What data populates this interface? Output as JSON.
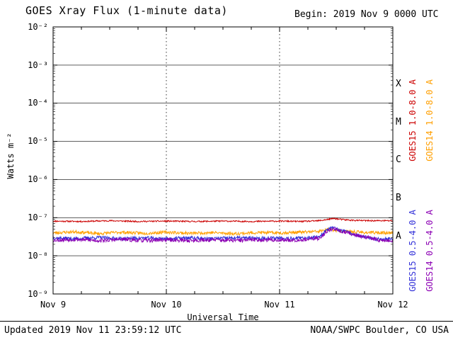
{
  "header": {
    "title": "GOES Xray Flux (1-minute data)",
    "begin_label": "Begin:  2019 Nov 9 0000 UTC"
  },
  "footer": {
    "updated": "Updated 2019 Nov 11 23:59:12 UTC",
    "credit": "NOAA/SWPC Boulder, CO USA"
  },
  "chart_data": {
    "type": "line",
    "title": "GOES Xray Flux (1-minute data)",
    "xlabel": "Universal Time",
    "ylabel": "Watts m⁻²",
    "x_ticks": [
      "Nov 9",
      "Nov 10",
      "Nov 11",
      "Nov 12"
    ],
    "x_tick_days": [
      0,
      1,
      2,
      3
    ],
    "y_tick_labels": [
      "10⁻²",
      "10⁻³",
      "10⁻⁴",
      "10⁻⁵",
      "10⁻⁶",
      "10⁻⁷",
      "10⁻⁸",
      "10⁻⁹"
    ],
    "y_tick_exponents": [
      -2,
      -3,
      -4,
      -5,
      -6,
      -7,
      -8,
      -9
    ],
    "xlim_days": [
      0,
      3
    ],
    "ylim_log": [
      -9,
      -2
    ],
    "grid": {
      "h_decades": [
        -3,
        -4,
        -5,
        -6,
        -7,
        -8
      ],
      "v_days": [
        1,
        2
      ]
    },
    "flare_classes": [
      {
        "label": "X",
        "log_center": -3.5
      },
      {
        "label": "M",
        "log_center": -4.5
      },
      {
        "label": "C",
        "log_center": -5.5
      },
      {
        "label": "B",
        "log_center": -6.5
      },
      {
        "label": "A",
        "log_center": -7.5
      }
    ],
    "series": [
      {
        "name": "GOES15 1.0-8.0 A",
        "color": "#cc0000",
        "noise": 0.018,
        "seed": 11,
        "points": [
          [
            0,
            -7.09
          ],
          [
            0.25,
            -7.1
          ],
          [
            0.5,
            -7.08
          ],
          [
            0.75,
            -7.1
          ],
          [
            1.0,
            -7.09
          ],
          [
            1.25,
            -7.1
          ],
          [
            1.5,
            -7.09
          ],
          [
            1.75,
            -7.1
          ],
          [
            2.0,
            -7.09
          ],
          [
            2.2,
            -7.1
          ],
          [
            2.35,
            -7.08
          ],
          [
            2.44,
            -7.04
          ],
          [
            2.48,
            -7.02
          ],
          [
            2.55,
            -7.05
          ],
          [
            2.65,
            -7.07
          ],
          [
            2.8,
            -7.08
          ],
          [
            3.0,
            -7.08
          ]
        ]
      },
      {
        "name": "GOES14 1.0-8.0 A",
        "color": "#ff9f00",
        "noise": 0.04,
        "seed": 23,
        "points": [
          [
            0,
            -7.4
          ],
          [
            0.2,
            -7.37
          ],
          [
            0.4,
            -7.42
          ],
          [
            0.6,
            -7.38
          ],
          [
            0.8,
            -7.41
          ],
          [
            1.0,
            -7.38
          ],
          [
            1.2,
            -7.41
          ],
          [
            1.4,
            -7.39
          ],
          [
            1.6,
            -7.42
          ],
          [
            1.8,
            -7.39
          ],
          [
            2.0,
            -7.4
          ],
          [
            2.2,
            -7.38
          ],
          [
            2.35,
            -7.36
          ],
          [
            2.44,
            -7.31
          ],
          [
            2.5,
            -7.33
          ],
          [
            2.6,
            -7.36
          ],
          [
            2.75,
            -7.39
          ],
          [
            3.0,
            -7.4
          ]
        ]
      },
      {
        "name": "GOES15 0.5-4.0 A",
        "color": "#3230d8",
        "noise": 0.045,
        "seed": 37,
        "points": [
          [
            0,
            -7.53
          ],
          [
            0.2,
            -7.55
          ],
          [
            0.4,
            -7.52
          ],
          [
            0.6,
            -7.55
          ],
          [
            0.8,
            -7.53
          ],
          [
            1.0,
            -7.55
          ],
          [
            1.2,
            -7.53
          ],
          [
            1.4,
            -7.55
          ],
          [
            1.6,
            -7.53
          ],
          [
            1.8,
            -7.54
          ],
          [
            2.0,
            -7.53
          ],
          [
            2.2,
            -7.54
          ],
          [
            2.35,
            -7.5
          ],
          [
            2.42,
            -7.32
          ],
          [
            2.46,
            -7.26
          ],
          [
            2.52,
            -7.32
          ],
          [
            2.6,
            -7.38
          ],
          [
            2.7,
            -7.47
          ],
          [
            2.82,
            -7.56
          ],
          [
            3.0,
            -7.55
          ]
        ]
      },
      {
        "name": "GOES14 0.5-4.0 A",
        "color": "#8c00b4",
        "noise": 0.05,
        "seed": 53,
        "points": [
          [
            0,
            -7.59
          ],
          [
            0.2,
            -7.57
          ],
          [
            0.4,
            -7.6
          ],
          [
            0.6,
            -7.57
          ],
          [
            0.8,
            -7.6
          ],
          [
            1.0,
            -7.58
          ],
          [
            1.2,
            -7.6
          ],
          [
            1.4,
            -7.58
          ],
          [
            1.6,
            -7.6
          ],
          [
            1.8,
            -7.58
          ],
          [
            2.0,
            -7.59
          ],
          [
            2.2,
            -7.58
          ],
          [
            2.35,
            -7.54
          ],
          [
            2.43,
            -7.34
          ],
          [
            2.47,
            -7.28
          ],
          [
            2.54,
            -7.36
          ],
          [
            2.62,
            -7.42
          ],
          [
            2.75,
            -7.5
          ],
          [
            2.9,
            -7.6
          ],
          [
            3.0,
            -7.61
          ]
        ]
      }
    ]
  }
}
